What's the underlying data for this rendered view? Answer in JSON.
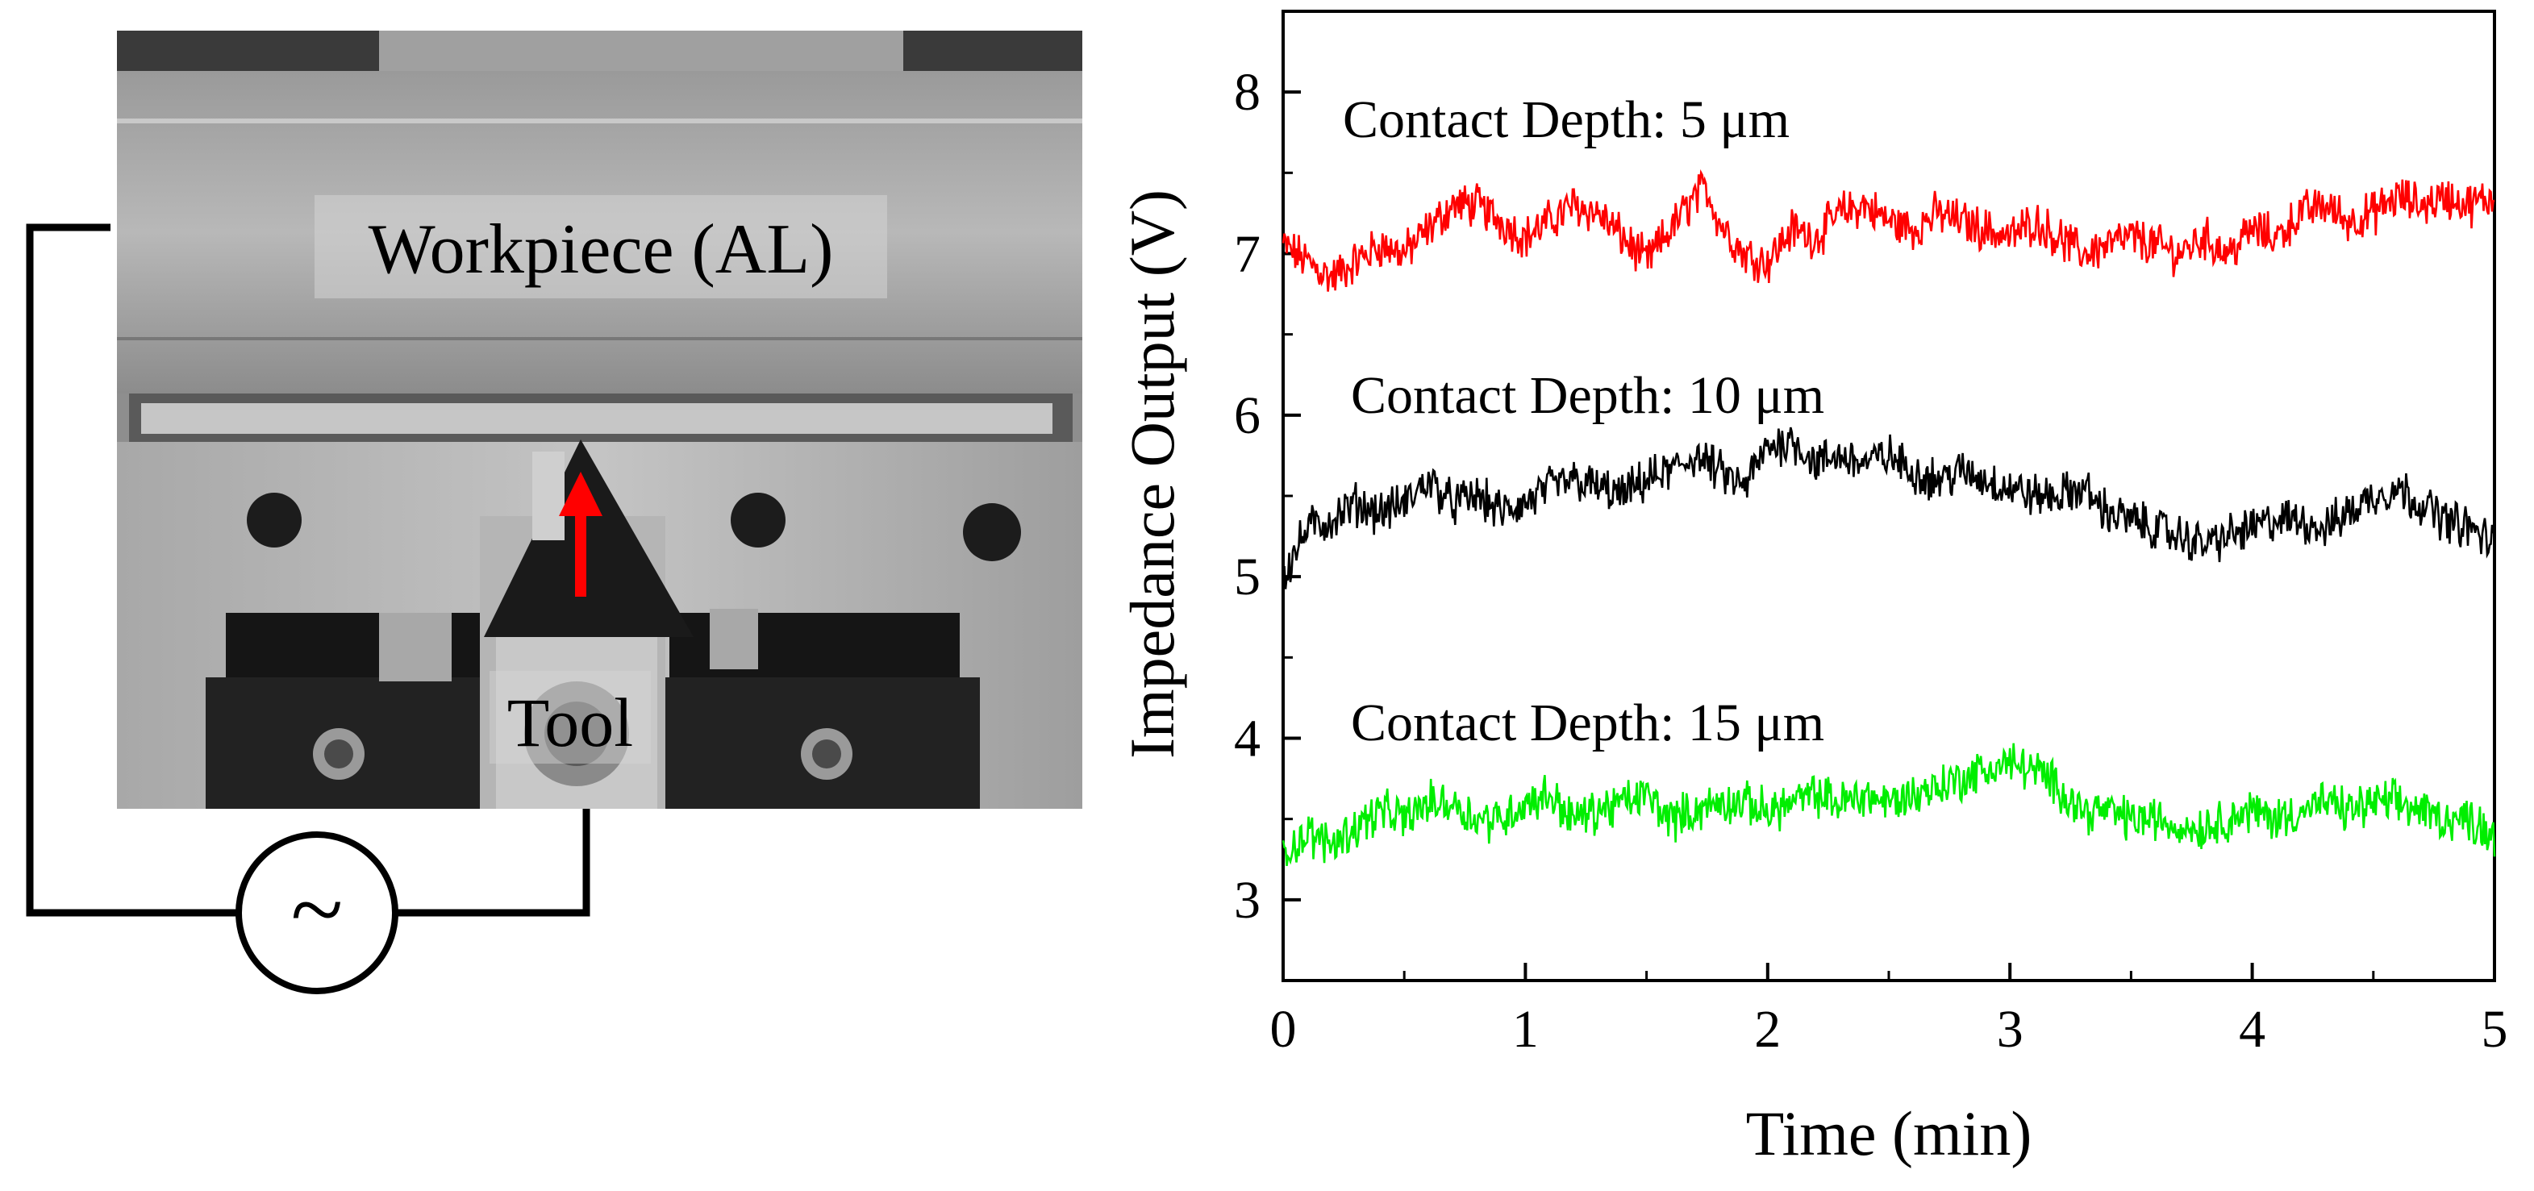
{
  "photo": {
    "workpiece_label": "Workpiece (AL)",
    "tool_label": "Tool",
    "source_symbol": "~",
    "icons": [
      "red-up-arrow-icon",
      "ac-source-icon"
    ]
  },
  "chart_data": {
    "type": "line",
    "title": "",
    "xlabel": "Time (min)",
    "ylabel": "Impedance Output (V)",
    "xlim": [
      0,
      5
    ],
    "ylim": [
      2.5,
      8.5
    ],
    "xticks": [
      "0",
      "1",
      "2",
      "3",
      "4",
      "5"
    ],
    "yticks": [
      "3",
      "4",
      "5",
      "6",
      "7",
      "8"
    ],
    "grid": false,
    "legend": "none",
    "annotations": [
      "Contact Depth: 5 μm",
      "Contact Depth: 10 μm",
      "Contact Depth: 15 μm"
    ],
    "series": [
      {
        "color": "#ff0000",
        "x": [
          0,
          0.1,
          0.2,
          0.3,
          0.4,
          0.5,
          0.6,
          0.7,
          0.8,
          0.9,
          1.0,
          1.1,
          1.2,
          1.3,
          1.4,
          1.5,
          1.6,
          1.7,
          1.75,
          1.8,
          1.9,
          2.0,
          2.1,
          2.2,
          2.3,
          2.4,
          2.5,
          2.6,
          2.7,
          2.8,
          2.9,
          3.0,
          3.1,
          3.2,
          3.3,
          3.4,
          3.5,
          3.6,
          3.7,
          3.8,
          3.9,
          4.0,
          4.1,
          4.2,
          4.3,
          4.4,
          4.5,
          4.6,
          4.7,
          4.8,
          4.9,
          5.0
        ],
        "y": [
          7.05,
          6.95,
          6.85,
          6.95,
          7.05,
          7.0,
          7.15,
          7.3,
          7.3,
          7.2,
          7.1,
          7.2,
          7.3,
          7.25,
          7.1,
          6.95,
          7.15,
          7.35,
          7.4,
          7.2,
          7.0,
          6.95,
          7.15,
          7.1,
          7.25,
          7.3,
          7.2,
          7.15,
          7.25,
          7.2,
          7.15,
          7.1,
          7.2,
          7.1,
          7.0,
          7.05,
          7.1,
          7.05,
          7.0,
          7.1,
          7.0,
          7.15,
          7.1,
          7.25,
          7.3,
          7.2,
          7.25,
          7.35,
          7.3,
          7.35,
          7.3,
          7.35
        ]
      },
      {
        "color": "#000000",
        "x": [
          0,
          0.1,
          0.2,
          0.3,
          0.4,
          0.5,
          0.6,
          0.7,
          0.8,
          0.9,
          1.0,
          1.1,
          1.2,
          1.3,
          1.4,
          1.5,
          1.6,
          1.7,
          1.8,
          1.9,
          2.0,
          2.1,
          2.2,
          2.3,
          2.4,
          2.5,
          2.6,
          2.7,
          2.8,
          2.9,
          3.0,
          3.1,
          3.2,
          3.3,
          3.4,
          3.5,
          3.6,
          3.7,
          3.8,
          3.9,
          4.0,
          4.1,
          4.2,
          4.3,
          4.4,
          4.5,
          4.6,
          4.7,
          4.8,
          4.9,
          5.0
        ],
        "y": [
          5.0,
          5.3,
          5.35,
          5.45,
          5.4,
          5.45,
          5.6,
          5.45,
          5.5,
          5.4,
          5.45,
          5.55,
          5.6,
          5.55,
          5.5,
          5.6,
          5.65,
          5.75,
          5.65,
          5.55,
          5.8,
          5.85,
          5.7,
          5.75,
          5.7,
          5.75,
          5.65,
          5.6,
          5.65,
          5.6,
          5.55,
          5.5,
          5.5,
          5.55,
          5.4,
          5.35,
          5.3,
          5.25,
          5.2,
          5.25,
          5.3,
          5.35,
          5.35,
          5.3,
          5.4,
          5.5,
          5.55,
          5.45,
          5.35,
          5.3,
          5.2
        ]
      },
      {
        "color": "#00ee00",
        "x": [
          0,
          0.1,
          0.2,
          0.3,
          0.4,
          0.5,
          0.6,
          0.7,
          0.8,
          0.9,
          1.0,
          1.1,
          1.2,
          1.3,
          1.4,
          1.5,
          1.6,
          1.7,
          1.8,
          1.9,
          2.0,
          2.1,
          2.2,
          2.3,
          2.4,
          2.5,
          2.6,
          2.7,
          2.8,
          2.9,
          3.0,
          3.1,
          3.2,
          3.3,
          3.4,
          3.5,
          3.6,
          3.7,
          3.8,
          3.9,
          4.0,
          4.1,
          4.2,
          4.3,
          4.4,
          4.5,
          4.6,
          4.7,
          4.8,
          4.9,
          5.0
        ],
        "y": [
          3.3,
          3.4,
          3.35,
          3.45,
          3.55,
          3.5,
          3.6,
          3.6,
          3.5,
          3.5,
          3.6,
          3.65,
          3.5,
          3.55,
          3.6,
          3.65,
          3.5,
          3.55,
          3.6,
          3.6,
          3.55,
          3.6,
          3.65,
          3.6,
          3.65,
          3.6,
          3.65,
          3.7,
          3.75,
          3.8,
          3.85,
          3.8,
          3.7,
          3.55,
          3.55,
          3.5,
          3.5,
          3.45,
          3.45,
          3.5,
          3.55,
          3.5,
          3.55,
          3.6,
          3.55,
          3.6,
          3.6,
          3.55,
          3.5,
          3.5,
          3.4
        ]
      }
    ]
  }
}
